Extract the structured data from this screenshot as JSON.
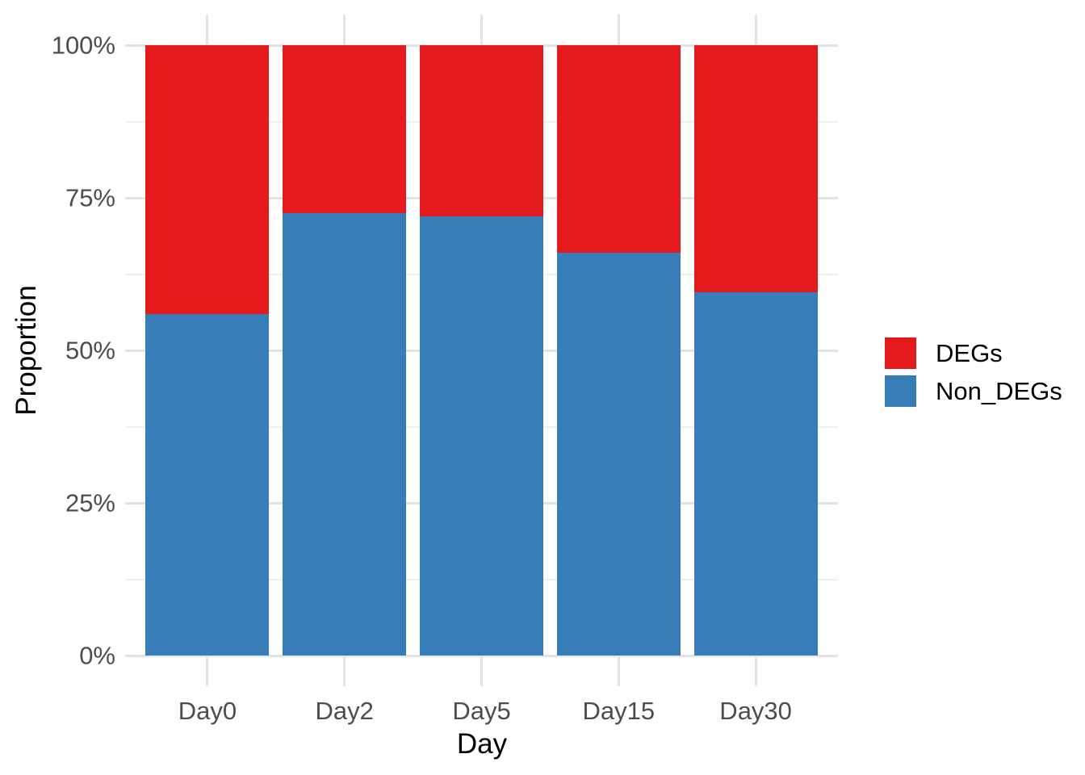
{
  "chart_data": {
    "type": "bar",
    "subtype": "stacked-percent",
    "orientation": "vertical",
    "title": "",
    "xlabel": "Day",
    "ylabel": "Proportion",
    "categories": [
      "Day0",
      "Day2",
      "Day5",
      "Day15",
      "Day30"
    ],
    "series": [
      {
        "name": "Non_DEGs",
        "color": "#377EB8",
        "values": [
          56,
          72.5,
          72,
          66,
          59.5
        ]
      },
      {
        "name": "DEGs",
        "color": "#E41A1C",
        "values": [
          44,
          27.5,
          28,
          34,
          40.5
        ]
      }
    ],
    "ylim": [
      0,
      100
    ],
    "y_unit": "%",
    "y_tick_values": [
      0,
      25,
      50,
      75,
      100
    ],
    "y_tick_labels": [
      "0%",
      "25%",
      "50%",
      "75%",
      "100%"
    ],
    "y_minor_values": [
      12.5,
      37.5,
      62.5,
      87.5
    ],
    "grid": true,
    "legend_position": "right",
    "bar_relative_width": 0.9
  },
  "legend": {
    "items": [
      {
        "label": "DEGs",
        "color": "#E41A1C"
      },
      {
        "label": "Non_DEGs",
        "color": "#377EB8"
      }
    ]
  },
  "style_colors": {
    "background": "#FFFFFF",
    "grid_major": "#E3E3E3",
    "grid_minor": "#EFEFEF",
    "axis_text": "#4D4D4D",
    "axis_title": "#000000",
    "legend_text": "#000000"
  }
}
